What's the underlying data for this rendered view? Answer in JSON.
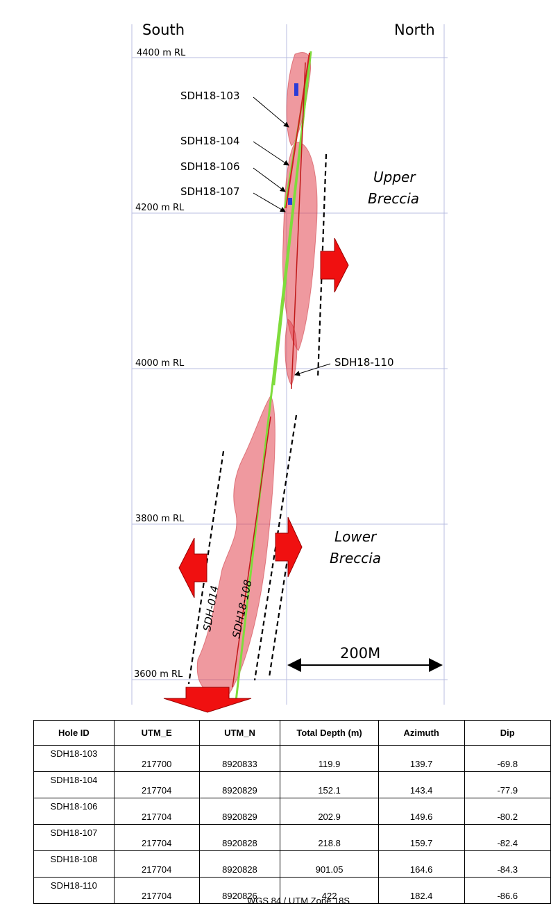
{
  "section": {
    "south": "South",
    "north": "North",
    "levels": [
      "4400 m RL",
      "4200 m RL",
      "4000 m RL",
      "3800 m RL",
      "3600 m RL"
    ],
    "holes": [
      "SDH18-103",
      "SDH18-104",
      "SDH18-106",
      "SDH18-107",
      "SDH18-110",
      "SDH-014",
      "SDH18-108"
    ],
    "upper": [
      "Upper",
      "Breccia"
    ],
    "lower": [
      "Lower",
      "Breccia"
    ],
    "scale": "200M"
  },
  "table": {
    "header": [
      "Hole ID",
      "UTM_E",
      "UTM_N",
      "Total Depth (m)",
      "Azimuth",
      "Dip"
    ],
    "rows": [
      [
        "SDH18-103",
        "217700",
        "8920833",
        "119.9",
        "139.7",
        "-69.8"
      ],
      [
        "SDH18-104",
        "217704",
        "8920829",
        "152.1",
        "143.4",
        "-77.9"
      ],
      [
        "SDH18-106",
        "217704",
        "8920829",
        "202.9",
        "149.6",
        "-80.2"
      ],
      [
        "SDH18-107",
        "217704",
        "8920828",
        "218.8",
        "159.7",
        "-82.4"
      ],
      [
        "SDH18-108",
        "217704",
        "8920828",
        "901.05",
        "164.6",
        "-84.3"
      ],
      [
        "SDH18-110",
        "217704",
        "8920826",
        "422",
        "182.4",
        "-86.6"
      ]
    ]
  },
  "footer": "WGS 84 / UTM Zone 18S"
}
